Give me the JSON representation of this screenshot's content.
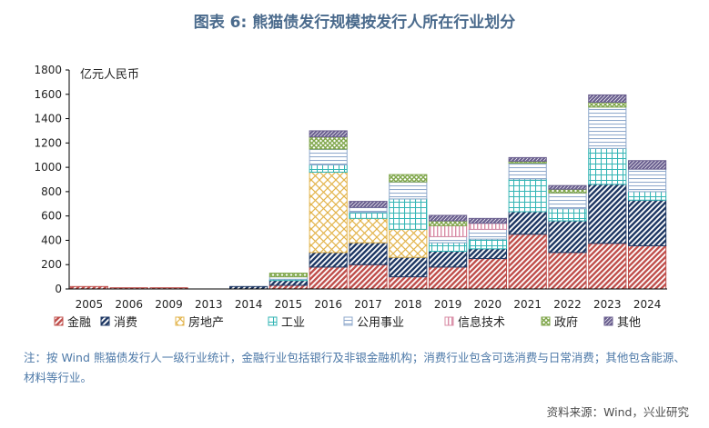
{
  "title": "图表 6: 熊猫债发行规模按发行人所在行业划分",
  "note": "注：按 Wind 熊猫债发行人一级行业统计，金融行业包括银行及非银金融机构；消费行业包含可选消费与日常消费；其他包含能源、材料等行业。",
  "source": "资料来源：Wind，兴业研究",
  "colors": {
    "title": "#4a6a8c",
    "note": "#4d79a8",
    "finance": "#c0504d",
    "consumer": "#1f3864",
    "realestate": "#e3b44b",
    "industrial": "#33b5b5",
    "utilities": "#8fa9cc",
    "it": "#d98ca6",
    "government": "#7fa64a",
    "other": "#6a5f8f"
  },
  "chart_data": {
    "type": "bar",
    "stacked": true,
    "unit_label": "亿元人民币",
    "ylim": [
      0,
      1800
    ],
    "yticks": [
      0,
      200,
      400,
      600,
      800,
      1000,
      1200,
      1400,
      1600,
      1800
    ],
    "categories": [
      "2005",
      "2006",
      "2009",
      "2013",
      "2014",
      "2015",
      "2016",
      "2017",
      "2018",
      "2019",
      "2020",
      "2021",
      "2022",
      "2023",
      "2024"
    ],
    "series": [
      {
        "name": "金融",
        "key": "finance",
        "values": [
          20,
          10,
          10,
          0,
          0,
          30,
          180,
          200,
          100,
          180,
          250,
          450,
          300,
          375,
          355
        ]
      },
      {
        "name": "消费",
        "key": "consumer",
        "values": [
          0,
          0,
          0,
          0,
          20,
          40,
          120,
          180,
          160,
          130,
          80,
          185,
          260,
          485,
          375
        ]
      },
      {
        "name": "房地产",
        "key": "realestate",
        "values": [
          0,
          0,
          0,
          0,
          0,
          0,
          660,
          200,
          230,
          0,
          0,
          0,
          0,
          0,
          0
        ]
      },
      {
        "name": "工业",
        "key": "industrial",
        "values": [
          0,
          0,
          0,
          0,
          0,
          10,
          60,
          50,
          250,
          70,
          80,
          270,
          100,
          295,
          70
        ]
      },
      {
        "name": "公用事业",
        "key": "utilities",
        "values": [
          0,
          0,
          0,
          0,
          0,
          20,
          130,
          40,
          140,
          50,
          80,
          130,
          130,
          340,
          185
        ]
      },
      {
        "name": "信息技术",
        "key": "it",
        "values": [
          0,
          0,
          0,
          0,
          0,
          0,
          0,
          0,
          0,
          90,
          50,
          0,
          0,
          0,
          0
        ]
      },
      {
        "name": "政府",
        "key": "government",
        "values": [
          0,
          0,
          0,
          0,
          0,
          30,
          100,
          0,
          60,
          40,
          0,
          15,
          30,
          40,
          0
        ]
      },
      {
        "name": "其他",
        "key": "other",
        "values": [
          0,
          0,
          0,
          0,
          0,
          0,
          50,
          50,
          0,
          45,
          40,
          30,
          30,
          60,
          70
        ]
      }
    ]
  }
}
